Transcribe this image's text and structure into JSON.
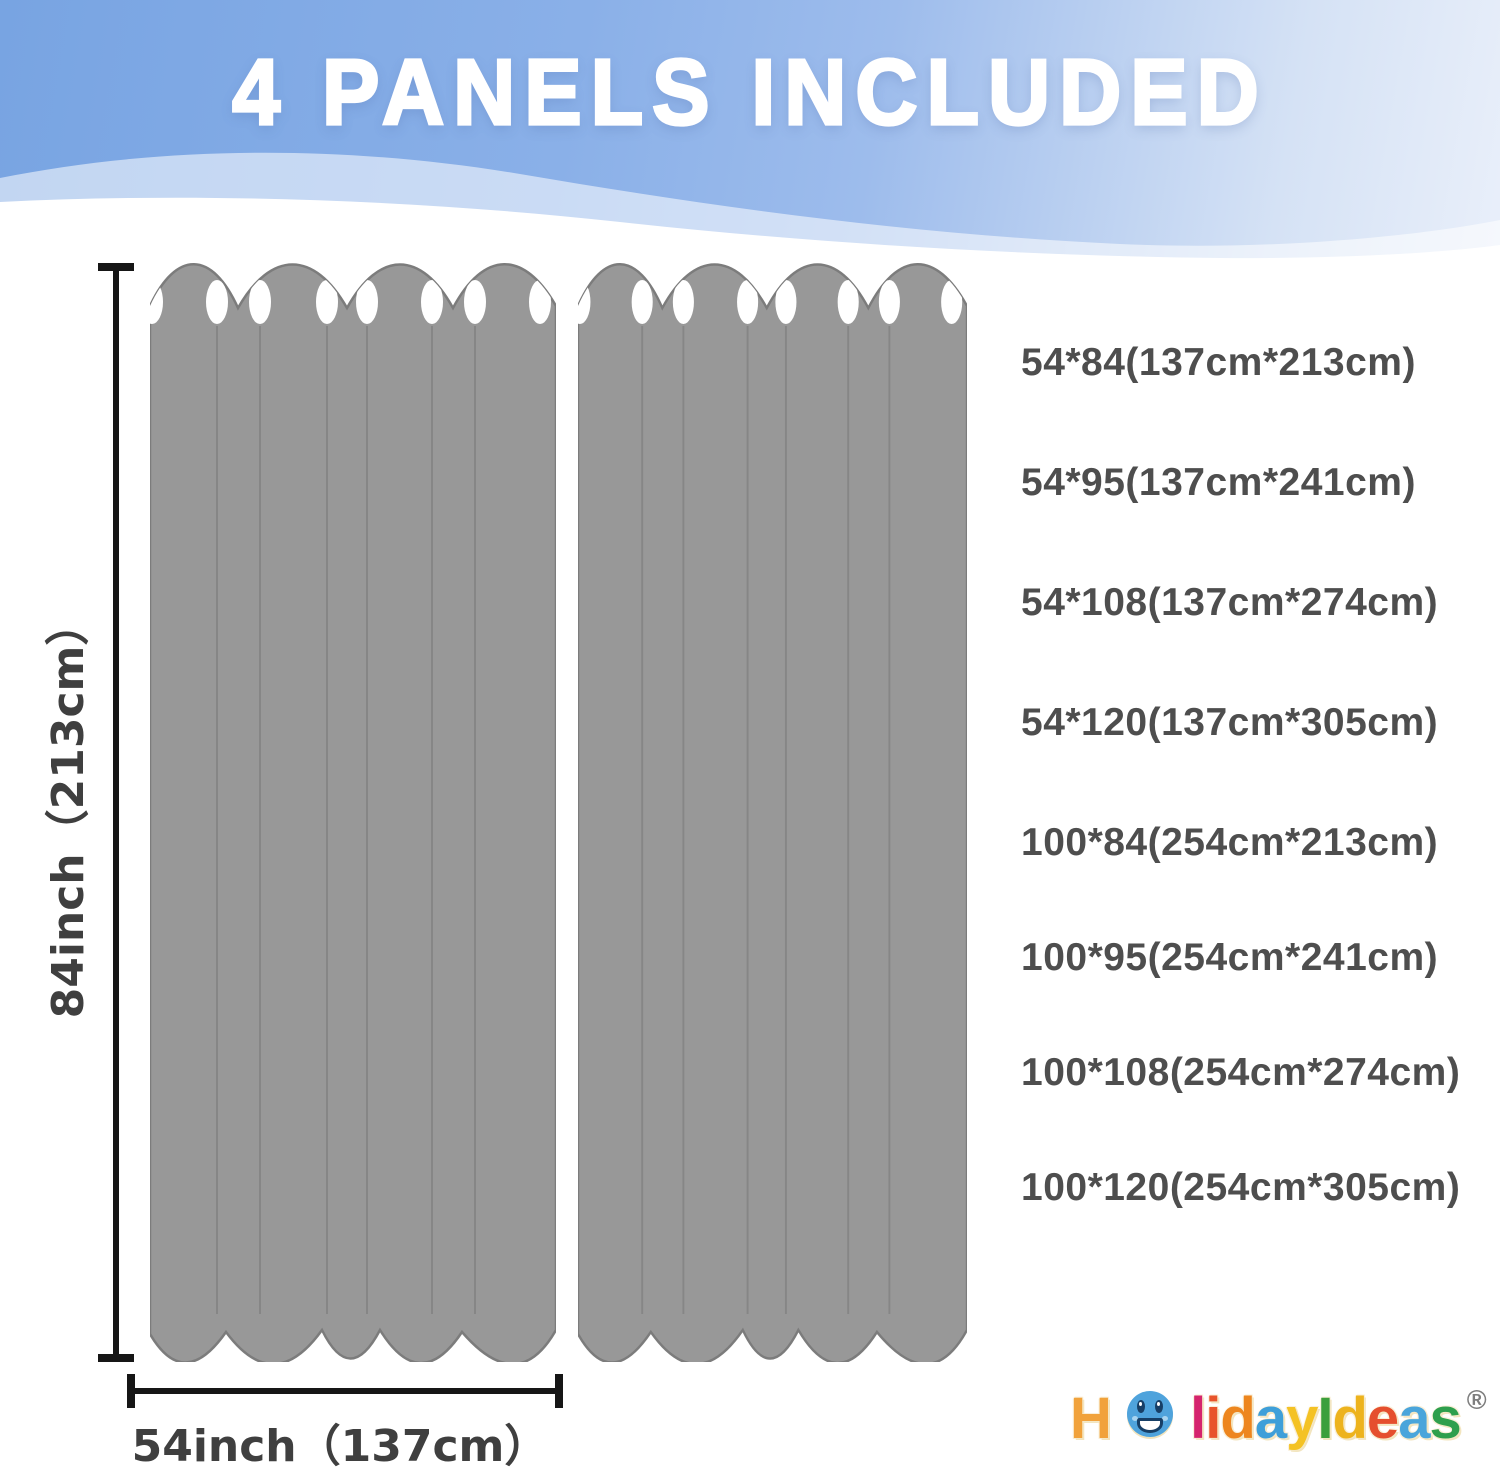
{
  "header": {
    "title": "4 PANELS INCLUDED"
  },
  "dimensions": {
    "height_label": "84inch（213cm）",
    "width_label": "54inch（137cm）"
  },
  "size_options": {
    "width_54": [
      "54*84(137cm*213cm)",
      "54*95(137cm*241cm)",
      "54*108(137cm*274cm)",
      "54*120(137cm*305cm)"
    ],
    "width_100": [
      "100*84(254cm*213cm)",
      "100*95(254cm*241cm)",
      "100*108(254cm*274cm)",
      "100*120(254cm*305cm)"
    ]
  },
  "brand": {
    "letters": [
      {
        "ch": "H",
        "color": "#F1A23B"
      },
      {
        "ch": "o",
        "color": "#4FA3DC",
        "smiley": true
      },
      {
        "ch": "l",
        "color": "#D5246D"
      },
      {
        "ch": "i",
        "color": "#E8542B"
      },
      {
        "ch": "d",
        "color": "#ED861F"
      },
      {
        "ch": "a",
        "color": "#3E9FD9"
      },
      {
        "ch": "y",
        "color": "#F4C224"
      },
      {
        "ch": "I",
        "color": "#3C9F3C"
      },
      {
        "ch": "d",
        "color": "#EDB31D"
      },
      {
        "ch": "e",
        "color": "#E54F2E"
      },
      {
        "ch": "a",
        "color": "#4AA5DB"
      },
      {
        "ch": "s",
        "color": "#2E9F4D"
      }
    ],
    "registered_mark": "®"
  },
  "colors": {
    "header-grad-start": "#78a4e2",
    "header-grad-mid": "#9dbcec",
    "header-grad-end": "#e9effa",
    "panel-fill": "#989898",
    "panel-outline": "#7c7c7c",
    "fold-line": "#868686",
    "dim-line": "#161616",
    "label-text": "#3f3f3f",
    "size-text": "#4e4e4e",
    "title-text": "#ffffff"
  }
}
